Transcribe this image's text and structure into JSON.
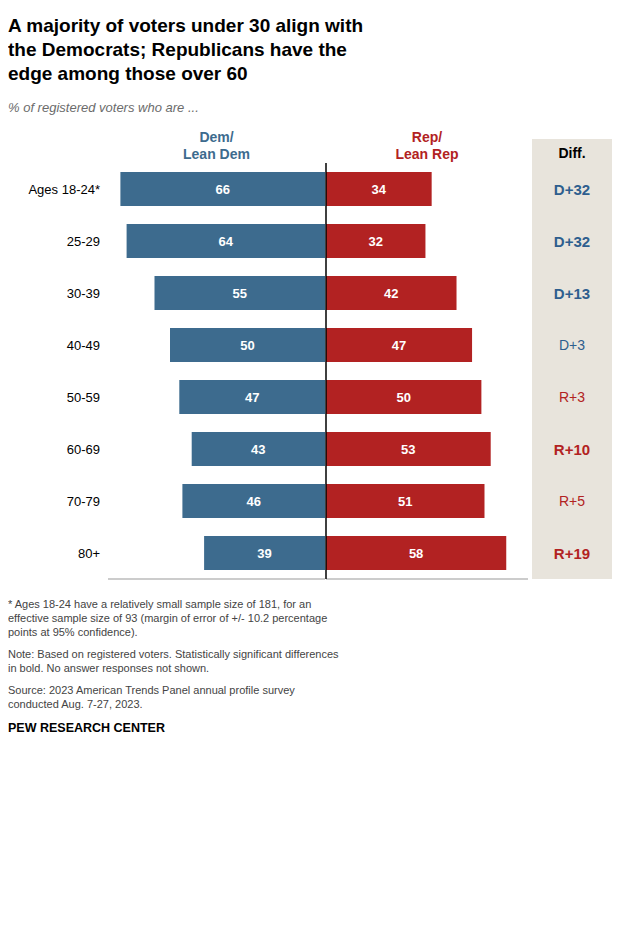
{
  "chart_data": {
    "type": "bar",
    "orientation": "horizontal",
    "title": "A majority of voters under 30 align with\nthe Democrats; Republicans have the\nedge among those over 60",
    "subtitle": "% of registered voters who are ...",
    "categories": [
      "Ages 18-24*",
      "25-29",
      "30-39",
      "40-49",
      "50-59",
      "60-69",
      "70-79",
      "80+"
    ],
    "series": [
      {
        "name": "Dem/\nLean Dem",
        "color": "#3D6B8E",
        "values": [
          66,
          64,
          55,
          50,
          47,
          43,
          46,
          39
        ],
        "xlim": [
          0,
          70
        ]
      },
      {
        "name": "Rep/\nLean Rep",
        "color": "#B22222",
        "values": [
          34,
          32,
          42,
          47,
          50,
          53,
          51,
          58
        ],
        "xlim": [
          0,
          65
        ]
      }
    ],
    "data_labels": true,
    "tick_labels": false,
    "grid": false,
    "diff_header": "Diff.",
    "diff_labels": [
      "D+32",
      "D+32",
      "D+13",
      "D+3",
      "R+3",
      "R+10",
      "R+5",
      "R+19"
    ],
    "diff_colors": [
      "#2E5E8E",
      "#2E5E8E",
      "#2E5E8E",
      "#2E5E8E",
      "#B22222",
      "#B22222",
      "#B22222",
      "#B22222"
    ],
    "diff_bold": [
      true,
      true,
      true,
      false,
      false,
      true,
      false,
      true
    ],
    "diff_bg_color": "#E8E4DC",
    "notes": [
      "* Ages 18-24 have a relatively small sample size of 181, for an\neffective sample size of 93 (margin of error of +/- 10.2 percentage\npoints at 95% confidence).",
      "Note: Based on registered voters. Statistically significant differences\nin bold. No answer responses not shown.",
      "Source: 2023 American Trends Panel annual profile survey\nconducted Aug. 7-27, 2023."
    ],
    "source": "PEW RESEARCH CENTER"
  }
}
